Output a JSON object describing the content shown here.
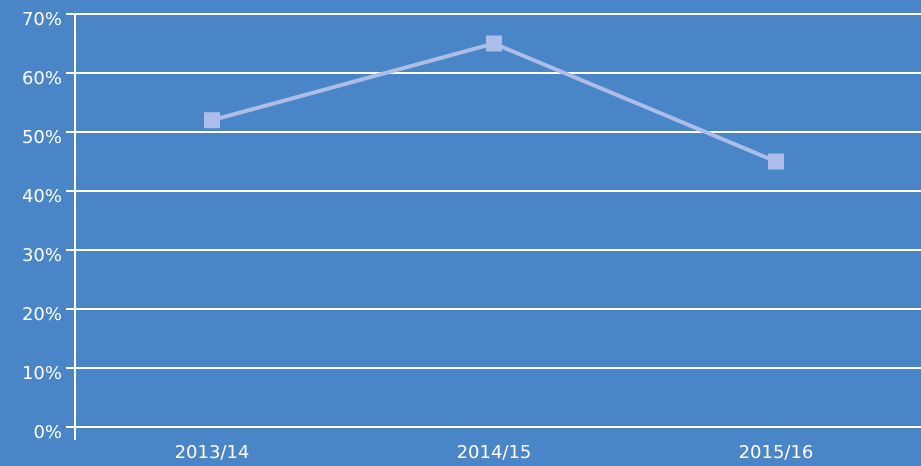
{
  "chart_data": {
    "type": "line",
    "categories": [
      "2013/14",
      "2014/15",
      "2015/16"
    ],
    "series": [
      {
        "name": null,
        "color": "#abbde8",
        "values": [
          52,
          65,
          45
        ]
      }
    ],
    "ylim": [
      0,
      70
    ],
    "yticks": [
      {
        "value": 0,
        "label": "0%"
      },
      {
        "value": 10,
        "label": "10%"
      },
      {
        "value": 20,
        "label": "20%"
      },
      {
        "value": 30,
        "label": "30%"
      },
      {
        "value": 40,
        "label": "40%"
      },
      {
        "value": 50,
        "label": "50%"
      },
      {
        "value": 60,
        "label": "60%"
      },
      {
        "value": 70,
        "label": "70%"
      }
    ],
    "grid": true
  }
}
